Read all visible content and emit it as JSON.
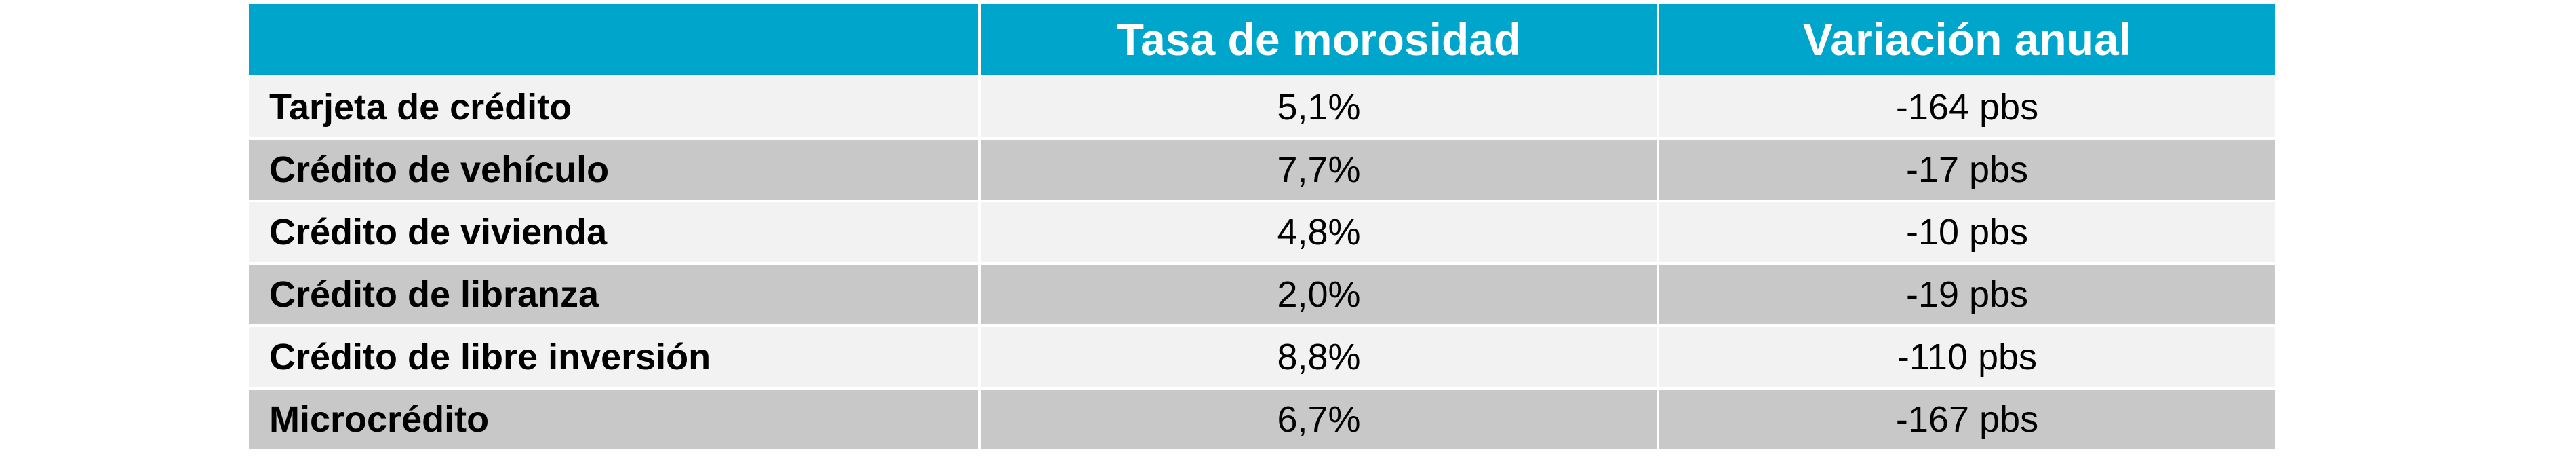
{
  "chart_data": {
    "type": "table",
    "columns": [
      "",
      "Tasa de morosidad",
      "Variación anual"
    ],
    "rows": [
      {
        "label": "Tarjeta de crédito",
        "rate": "5,1%",
        "change": "-164 pbs"
      },
      {
        "label": "Crédito de vehículo",
        "rate": "7,7%",
        "change": "-17 pbs"
      },
      {
        "label": "Crédito de vivienda",
        "rate": "4,8%",
        "change": "-10 pbs"
      },
      {
        "label": "Crédito de libranza",
        "rate": "2,0%",
        "change": "-19 pbs"
      },
      {
        "label": "Crédito de libre inversión",
        "rate": "8,8%",
        "change": "-110 pbs"
      },
      {
        "label": "Microcrédito",
        "rate": "6,7%",
        "change": "-167 pbs"
      }
    ]
  },
  "colors": {
    "header_bg": "#00a5cc",
    "header_text": "#ffffff",
    "row_light": "#f2f2f2",
    "row_dark": "#c8c8c8"
  }
}
